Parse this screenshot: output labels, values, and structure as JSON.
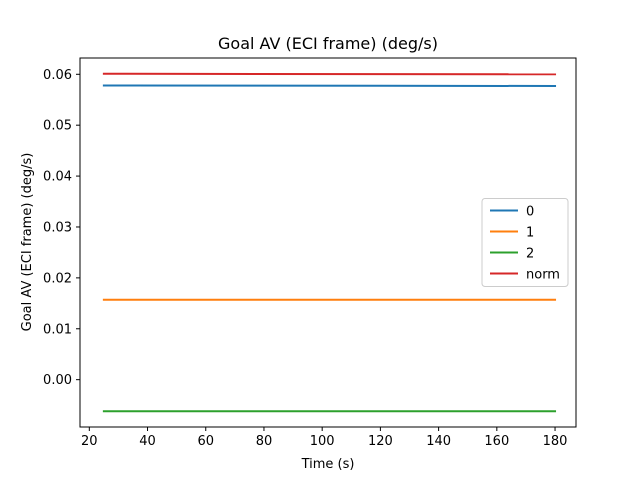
{
  "chart_data": {
    "type": "line",
    "title": "Goal AV (ECI frame) (deg/s)",
    "xlabel": "Time (s)",
    "ylabel": "Goal AV (ECI frame) (deg/s)",
    "xlim": [
      16.8,
      187.2
    ],
    "ylim": [
      -0.0093,
      0.0632
    ],
    "x_ticks": [
      20,
      40,
      60,
      80,
      100,
      120,
      140,
      160,
      180
    ],
    "y_ticks": [
      0.0,
      0.01,
      0.02,
      0.03,
      0.04,
      0.05,
      0.06
    ],
    "x_tick_labels": [
      "20",
      "40",
      "60",
      "80",
      "100",
      "120",
      "140",
      "160",
      "180"
    ],
    "y_tick_labels": [
      "0.00",
      "0.01",
      "0.02",
      "0.03",
      "0.04",
      "0.05",
      "0.06"
    ],
    "grid": false,
    "legend_position": "center-right",
    "x": [
      25,
      180
    ],
    "series": [
      {
        "name": "0",
        "color": "#1f77b4",
        "values": [
          0.0578,
          0.0577
        ]
      },
      {
        "name": "1",
        "color": "#ff7f0e",
        "values": [
          0.0157,
          0.0157
        ]
      },
      {
        "name": "2",
        "color": "#2ca02c",
        "values": [
          -0.0062,
          -0.0062
        ]
      },
      {
        "name": "norm",
        "color": "#d62728",
        "values": [
          0.0601,
          0.06
        ]
      }
    ]
  }
}
